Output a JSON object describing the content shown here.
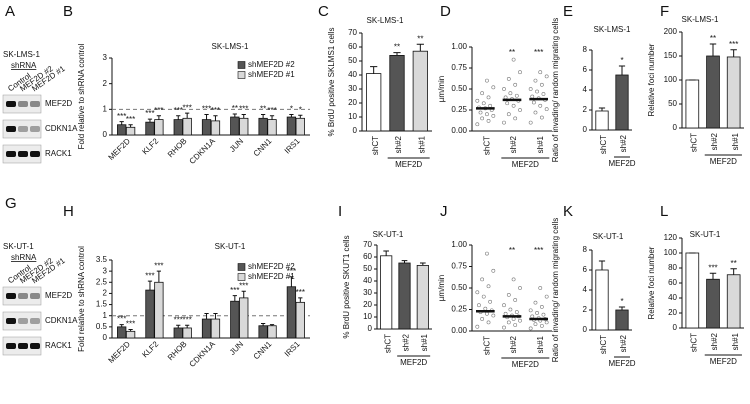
{
  "blots": [
    {
      "panel": "A",
      "cell_line": "SK-LMS-1",
      "label": "shRNA",
      "lanes": [
        "Control",
        "MEF2D #2",
        "MEF2D #1"
      ],
      "rows": [
        "MEF2D",
        "CDKN1A",
        "RACK1"
      ]
    },
    {
      "panel": "G",
      "cell_line": "SK-UT-1",
      "label": "shRNA",
      "lanes": [
        "Control",
        "MEF2D #2",
        "MEF2D #1"
      ],
      "rows": [
        "MEF2D",
        "CDKN1A",
        "RACK1"
      ]
    }
  ],
  "chart_data": [
    {
      "type": "bar",
      "panel": "B",
      "title": "SK-LMS-1",
      "y_label": "Fold relative to shRNA control",
      "categories": [
        "MEF2D",
        "KLF2",
        "RHOB",
        "CDKN1A",
        "JUN",
        "CNN1",
        "IRS1"
      ],
      "series": [
        {
          "name": "shMEF2D #2",
          "color": "#555555",
          "values": [
            0.4,
            0.5,
            0.6,
            0.6,
            0.7,
            0.65,
            0.7
          ],
          "errors": [
            0.12,
            0.12,
            0.15,
            0.2,
            0.12,
            0.15,
            0.1
          ],
          "significance": [
            "***",
            "***",
            "***",
            "***",
            "**",
            "**",
            "*"
          ]
        },
        {
          "name": "shMEF2D #1",
          "color": "#d9d9d9",
          "values": [
            0.3,
            0.6,
            0.65,
            0.55,
            0.65,
            0.6,
            0.65
          ],
          "errors": [
            0.1,
            0.15,
            0.2,
            0.2,
            0.15,
            0.15,
            0.12
          ],
          "significance": [
            "***",
            "***",
            "***",
            "***",
            "***",
            "***",
            "*"
          ]
        }
      ],
      "ylim": [
        0,
        3
      ],
      "yticks": [
        0,
        1,
        2,
        3
      ],
      "reference_line": 1
    },
    {
      "type": "bar",
      "panel": "C",
      "title": "SK-LMS-1",
      "y_label": "% BrdU positive SKLMS1 cells",
      "categories": [
        "shCT",
        "sh#2",
        "sh#1"
      ],
      "group_label": "MEF2D",
      "values": [
        41,
        54,
        57
      ],
      "errors": [
        5,
        2,
        5
      ],
      "colors": [
        "#ffffff",
        "#555555",
        "#d9d9d9"
      ],
      "significance": [
        null,
        "**",
        "**"
      ],
      "ylim": [
        0,
        70
      ],
      "yticks": [
        0,
        10,
        20,
        30,
        40,
        50,
        60,
        70
      ]
    },
    {
      "type": "strip",
      "panel": "D",
      "y_label": "µm/min",
      "categories": [
        "shCT",
        "sh#2",
        "sh#1"
      ],
      "group_label": "MEF2D",
      "values": [
        0.27,
        0.37,
        0.38
      ],
      "significance": [
        null,
        "**",
        "***"
      ],
      "points": [
        [
          0.08,
          0.12,
          0.15,
          0.18,
          0.2,
          0.22,
          0.25,
          0.27,
          0.28,
          0.3,
          0.33,
          0.36,
          0.4,
          0.45,
          0.52,
          0.6
        ],
        [
          0.1,
          0.15,
          0.2,
          0.25,
          0.3,
          0.33,
          0.36,
          0.38,
          0.4,
          0.42,
          0.45,
          0.5,
          0.55,
          0.62,
          0.7,
          0.85
        ],
        [
          0.1,
          0.16,
          0.22,
          0.26,
          0.3,
          0.34,
          0.37,
          0.39,
          0.41,
          0.44,
          0.47,
          0.5,
          0.55,
          0.6,
          0.65,
          0.7
        ]
      ],
      "ylim": [
        0,
        1
      ],
      "yticks": [
        {
          "value": 0,
          "label": "0.00"
        },
        {
          "value": 0.25,
          "label": "0.25"
        },
        {
          "value": 0.5,
          "label": "0.50"
        },
        {
          "value": 0.75,
          "label": "0.75"
        },
        {
          "value": 1,
          "label": "1.00"
        }
      ]
    },
    {
      "type": "bar",
      "panel": "E",
      "title": "SK-LMS-1",
      "y_label": "Ratio of invading/ random migrating cells",
      "categories": [
        "shCT",
        "sh#2"
      ],
      "group_label": "MEF2D",
      "values": [
        1.9,
        5.5
      ],
      "errors": [
        0.3,
        0.9
      ],
      "colors": [
        "#ffffff",
        "#555555"
      ],
      "significance": [
        null,
        "*"
      ],
      "ylim": [
        0,
        8
      ],
      "yticks": [
        0,
        2,
        4,
        6,
        8
      ]
    },
    {
      "type": "bar",
      "panel": "F",
      "title": "SK-LMS-1",
      "y_label": "Relative foci number",
      "categories": [
        "shCT",
        "sh#2",
        "sh#1"
      ],
      "group_label": "MEF2D",
      "values": [
        100,
        150,
        148
      ],
      "errors": [
        0,
        25,
        15
      ],
      "colors": [
        "#ffffff",
        "#555555",
        "#d9d9d9"
      ],
      "significance": [
        null,
        "**",
        "***"
      ],
      "ylim": [
        0,
        200
      ],
      "yticks": [
        0,
        50,
        100,
        150,
        200
      ]
    },
    {
      "type": "bar",
      "panel": "H",
      "title": "SK-UT-1",
      "y_label": "Fold relative to shRNA control",
      "categories": [
        "MEF2D",
        "KLF2",
        "RHOB",
        "CDKN1A",
        "JUN",
        "CNN1",
        "IRS1"
      ],
      "series": [
        {
          "name": "shMEF2D #2",
          "color": "#555555",
          "values": [
            0.5,
            2.15,
            0.45,
            0.85,
            1.65,
            0.55,
            2.3
          ],
          "errors": [
            0.1,
            0.4,
            0.12,
            0.25,
            0.25,
            0.1,
            0.45
          ],
          "significance": [
            "***",
            "***",
            "***",
            null,
            "***",
            null,
            "***"
          ]
        },
        {
          "name": "shMEF2D #1",
          "color": "#d9d9d9",
          "values": [
            0.3,
            2.5,
            0.45,
            0.85,
            1.8,
            0.55,
            1.6
          ],
          "errors": [
            0.08,
            0.5,
            0.12,
            0.25,
            0.3,
            0.05,
            0.2
          ],
          "significance": [
            "***",
            "***",
            "***",
            null,
            "***",
            null,
            "***"
          ]
        }
      ],
      "ylim": [
        0,
        3.5
      ],
      "yticks": [
        0,
        0.5,
        1,
        1.5,
        2,
        2.5,
        3,
        3.5
      ],
      "reference_line": 1
    },
    {
      "type": "bar",
      "panel": "I",
      "title": "SK-UT-1",
      "y_label": "% BrdU positive SKUT1 cells",
      "categories": [
        "shCT",
        "sh#2",
        "sh#1"
      ],
      "group_label": "MEF2D",
      "values": [
        61,
        55,
        53
      ],
      "errors": [
        4,
        2,
        2
      ],
      "colors": [
        "#ffffff",
        "#555555",
        "#d9d9d9"
      ],
      "ylim": [
        0,
        70
      ],
      "yticks": [
        0,
        10,
        20,
        30,
        40,
        50,
        60,
        70
      ]
    },
    {
      "type": "strip",
      "panel": "J",
      "y_label": "µm/min",
      "categories": [
        "shCT",
        "sh#2",
        "sh#1"
      ],
      "group_label": "MEF2D",
      "values": [
        0.23,
        0.17,
        0.14
      ],
      "significance": [
        null,
        "**",
        "***"
      ],
      "points": [
        [
          0.05,
          0.1,
          0.14,
          0.18,
          0.2,
          0.22,
          0.24,
          0.26,
          0.3,
          0.34,
          0.4,
          0.45,
          0.52,
          0.6,
          0.7,
          0.9
        ],
        [
          0.04,
          0.07,
          0.1,
          0.12,
          0.14,
          0.16,
          0.17,
          0.18,
          0.2,
          0.22,
          0.25,
          0.3,
          0.36,
          0.42,
          0.5,
          0.6
        ],
        [
          0.03,
          0.06,
          0.08,
          0.1,
          0.12,
          0.13,
          0.14,
          0.15,
          0.17,
          0.19,
          0.21,
          0.24,
          0.28,
          0.33,
          0.4,
          0.5
        ]
      ],
      "ylim": [
        0,
        1
      ],
      "yticks": [
        {
          "value": 0,
          "label": "0.00"
        },
        {
          "value": 0.25,
          "label": "0.25"
        },
        {
          "value": 0.5,
          "label": "0.50"
        },
        {
          "value": 0.75,
          "label": "0.75"
        },
        {
          "value": 1,
          "label": "1.00"
        }
      ]
    },
    {
      "type": "bar",
      "panel": "K",
      "title": "SK-UT-1",
      "y_label": "Ratio of invading/ random migrating cells",
      "categories": [
        "shCT",
        "sh#2"
      ],
      "group_label": "MEF2D",
      "values": [
        6,
        2
      ],
      "errors": [
        0.9,
        0.3
      ],
      "colors": [
        "#ffffff",
        "#555555"
      ],
      "significance": [
        null,
        "*"
      ],
      "ylim": [
        0,
        8
      ],
      "yticks": [
        0,
        2,
        4,
        6,
        8
      ]
    },
    {
      "type": "bar",
      "panel": "L",
      "title": "SK-UT-1",
      "y_label": "Relative foci number",
      "categories": [
        "shCT",
        "sh#2",
        "sh#1"
      ],
      "group_label": "MEF2D",
      "values": [
        100,
        65,
        71
      ],
      "errors": [
        0,
        8,
        8
      ],
      "colors": [
        "#ffffff",
        "#555555",
        "#d9d9d9"
      ],
      "significance": [
        null,
        "***",
        "**"
      ],
      "ylim": [
        0,
        120
      ],
      "yticks": [
        0,
        20,
        40,
        60,
        80,
        100,
        120
      ]
    }
  ]
}
